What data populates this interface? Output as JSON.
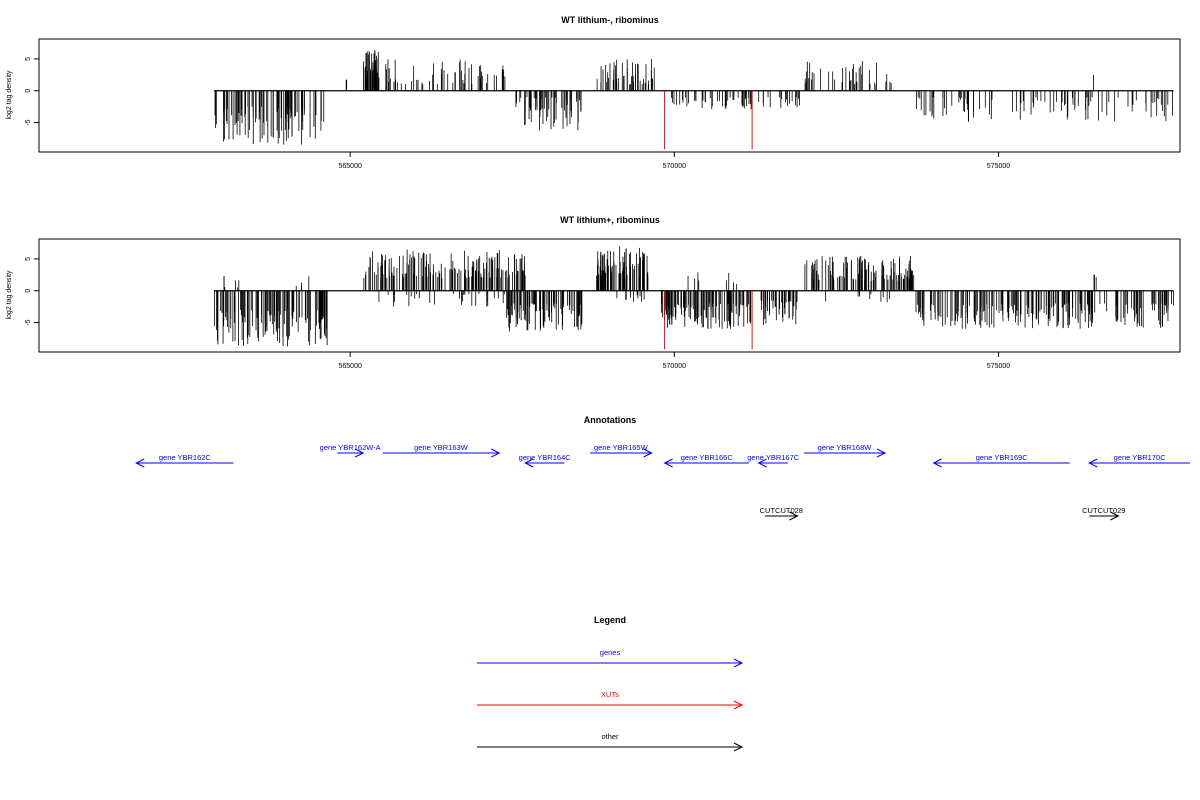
{
  "colors": {
    "gene": "#0000ff",
    "xut": "#ff0000",
    "other": "#000000",
    "bars": "#000000"
  },
  "chart_data": [
    {
      "type": "bar",
      "title": "WT lithium-, ribominus",
      "ylabel": "log2 tag density",
      "xlim": [
        560200,
        577800
      ],
      "ylim": [
        -9,
        7.5
      ],
      "xticks": [
        565000,
        570000,
        575000
      ],
      "xtick_labels": [
        "565000",
        "570000",
        "575000"
      ],
      "yticks": [
        -5,
        0,
        5
      ],
      "ytick_labels": [
        "-5",
        "0",
        "5"
      ],
      "segments": [
        {
          "x0": 562900,
          "x1": 564600,
          "sign": -1,
          "min": 2.5,
          "max": 8.5,
          "density": 90
        },
        {
          "x0": 564900,
          "x1": 565050,
          "sign": 1,
          "min": 1,
          "max": 2,
          "density": 3
        },
        {
          "x0": 565200,
          "x1": 565450,
          "sign": 1,
          "min": 2,
          "max": 6.5,
          "density": 40
        },
        {
          "x0": 565500,
          "x1": 567400,
          "sign": 1,
          "min": 1,
          "max": 5,
          "density": 55
        },
        {
          "x0": 567550,
          "x1": 568600,
          "sign": -1,
          "min": 1,
          "max": 6.5,
          "density": 60
        },
        {
          "x0": 568800,
          "x1": 569750,
          "sign": 1,
          "min": 1,
          "max": 5,
          "density": 45
        },
        {
          "x0": 569850,
          "x1": 571200,
          "sign": -1,
          "min": 1,
          "max": 3,
          "density": 45
        },
        {
          "x0": 571300,
          "x1": 571950,
          "sign": -1,
          "min": 1,
          "max": 3,
          "density": 18
        },
        {
          "x0": 572000,
          "x1": 573500,
          "sign": 1,
          "min": 1,
          "max": 5,
          "density": 40
        },
        {
          "x0": 573700,
          "x1": 577700,
          "sign": -1,
          "min": 1,
          "max": 5,
          "density": 95
        },
        {
          "x0": 576450,
          "x1": 576500,
          "sign": 1,
          "min": 2,
          "max": 2.6,
          "density": 1
        }
      ],
      "highlight": [
        {
          "x": 569850,
          "value": -9.2
        },
        {
          "x": 571200,
          "value": -9.2
        }
      ]
    },
    {
      "type": "bar",
      "title": "WT lithium+, ribominus",
      "ylabel": "log2 tag density",
      "xlim": [
        560200,
        577800
      ],
      "ylim": [
        -9,
        7.5
      ],
      "xticks": [
        565000,
        570000,
        575000
      ],
      "xtick_labels": [
        "565000",
        "570000",
        "575000"
      ],
      "yticks": [
        -5,
        0,
        5
      ],
      "ytick_labels": [
        "-5",
        "0",
        "5"
      ],
      "segments": [
        {
          "x0": 562900,
          "x1": 564700,
          "sign": -1,
          "min": 3,
          "max": 9,
          "density": 120
        },
        {
          "x0": 563000,
          "x1": 564500,
          "sign": 1,
          "min": 0.5,
          "max": 3,
          "density": 10
        },
        {
          "x0": 565200,
          "x1": 567700,
          "sign": 1,
          "min": 2,
          "max": 6.5,
          "density": 160
        },
        {
          "x0": 565300,
          "x1": 567500,
          "sign": -1,
          "min": 0.5,
          "max": 2.5,
          "density": 30
        },
        {
          "x0": 567400,
          "x1": 568600,
          "sign": -1,
          "min": 2,
          "max": 6.5,
          "density": 90
        },
        {
          "x0": 568800,
          "x1": 569600,
          "sign": 1,
          "min": 2,
          "max": 7,
          "density": 80
        },
        {
          "x0": 569000,
          "x1": 569600,
          "sign": -1,
          "min": 0.5,
          "max": 2,
          "density": 10
        },
        {
          "x0": 569800,
          "x1": 571200,
          "sign": -1,
          "min": 2,
          "max": 6,
          "density": 110
        },
        {
          "x0": 570200,
          "x1": 571000,
          "sign": 1,
          "min": 0.5,
          "max": 3,
          "density": 8
        },
        {
          "x0": 571300,
          "x1": 571900,
          "sign": -1,
          "min": 1.5,
          "max": 5.5,
          "density": 40
        },
        {
          "x0": 572000,
          "x1": 573700,
          "sign": 1,
          "min": 1.5,
          "max": 5.5,
          "density": 110
        },
        {
          "x0": 572300,
          "x1": 573400,
          "sign": -1,
          "min": 0.5,
          "max": 2,
          "density": 10
        },
        {
          "x0": 573700,
          "x1": 577700,
          "sign": -1,
          "min": 2,
          "max": 6,
          "density": 220
        },
        {
          "x0": 576450,
          "x1": 576520,
          "sign": 1,
          "min": 1.5,
          "max": 3,
          "density": 3
        }
      ],
      "highlight": [
        {
          "x": 569850,
          "value": -9.2
        },
        {
          "x": 571200,
          "value": -9.2
        }
      ]
    }
  ],
  "annotations": {
    "title": "Annotations",
    "xlim": [
      560200,
      577800
    ],
    "features": [
      {
        "label": "gene YBR162C",
        "start": 561700,
        "end": 563200,
        "strand": "-",
        "kind": "gene",
        "row": 2
      },
      {
        "label": "gene YBR162W-A",
        "start": 564800,
        "end": 565200,
        "strand": "+",
        "kind": "gene",
        "row": 1
      },
      {
        "label": "gene YBR163W",
        "start": 565500,
        "end": 567300,
        "strand": "+",
        "kind": "gene",
        "row": 1
      },
      {
        "label": "gene YBR164C",
        "start": 567700,
        "end": 568300,
        "strand": "-",
        "kind": "gene",
        "row": 2
      },
      {
        "label": "gene YBR165W",
        "start": 568700,
        "end": 569650,
        "strand": "+",
        "kind": "gene",
        "row": 1
      },
      {
        "label": "gene YBR166C",
        "start": 569850,
        "end": 571150,
        "strand": "-",
        "kind": "gene",
        "row": 2
      },
      {
        "label": "gene YBR167C",
        "start": 571300,
        "end": 571750,
        "strand": "-",
        "kind": "gene",
        "row": 2
      },
      {
        "label": "gene YBR168W",
        "start": 572000,
        "end": 573250,
        "strand": "+",
        "kind": "gene",
        "row": 1
      },
      {
        "label": "gene YBR169C",
        "start": 574000,
        "end": 576100,
        "strand": "-",
        "kind": "gene",
        "row": 2
      },
      {
        "label": "gene YBR170C",
        "start": 576400,
        "end": 578200,
        "strand": "-",
        "kind": "gene",
        "row": 2
      },
      {
        "label": "CUTCUT028",
        "start": 571400,
        "end": 571900,
        "strand": "+",
        "kind": "other",
        "row": 3
      },
      {
        "label": "CUTCUT029",
        "start": 576400,
        "end": 576850,
        "strand": "+",
        "kind": "other",
        "row": 3
      }
    ]
  },
  "legend": {
    "title": "Legend",
    "items": [
      {
        "label": "genes",
        "kind": "gene"
      },
      {
        "label": "XUTs",
        "kind": "xut"
      },
      {
        "label": "other",
        "kind": "other"
      }
    ]
  }
}
